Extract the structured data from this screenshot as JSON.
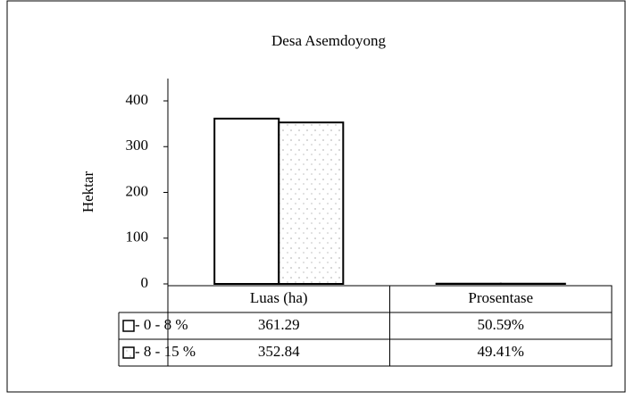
{
  "chart_data": {
    "type": "bar",
    "title": "Desa Asemdoyong",
    "y_label": "Hektar",
    "categories": [
      "Luas (ha)",
      "Prosentase"
    ],
    "series": [
      {
        "name": "- 0 - 8 %",
        "color": "#ffffff",
        "values": [
          361.29,
          0.5059
        ],
        "value_labels": [
          "361.29",
          "50.59%"
        ]
      },
      {
        "name": "- 8 - 15 %",
        "color": "dotted",
        "values": [
          352.84,
          0.4941
        ],
        "value_labels": [
          "352.84",
          "49.41%"
        ]
      }
    ],
    "ylim": [
      0,
      400
    ],
    "yticks": [
      0,
      100,
      200,
      300,
      400
    ],
    "grid": false,
    "data_table": true
  }
}
